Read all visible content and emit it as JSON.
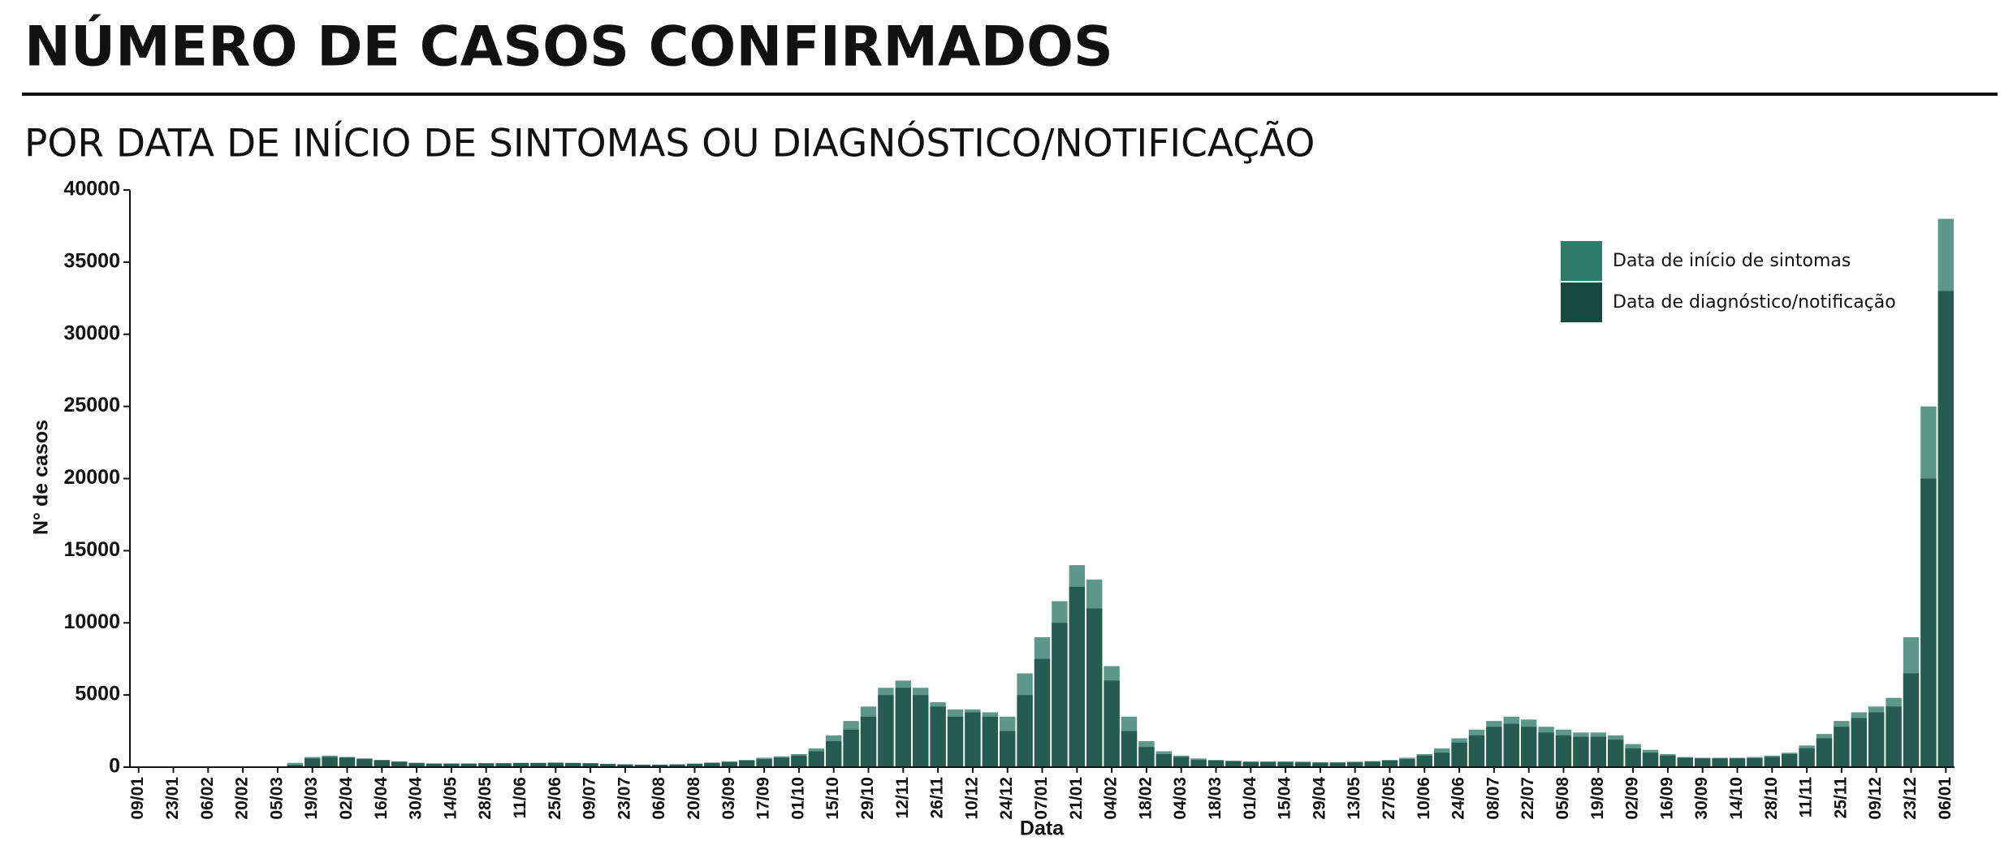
{
  "chart_data": {
    "type": "bar",
    "title": "NÚMERO DE CASOS CONFIRMADOS",
    "subtitle": "POR DATA DE INÍCIO DE SINTOMAS OU DIAGNÓSTICO/NOTIFICAÇÃO",
    "x_label": "Data",
    "y_label": "N° de casos",
    "categories": [
      "09/01",
      null,
      "23/01",
      null,
      "06/02",
      null,
      "20/02",
      null,
      "05/03",
      null,
      "19/03",
      null,
      "02/04",
      null,
      "16/04",
      null,
      "30/04",
      null,
      "14/05",
      null,
      "28/05",
      null,
      "11/06",
      null,
      "25/06",
      null,
      "09/07",
      null,
      "23/07",
      null,
      "06/08",
      null,
      "20/08",
      null,
      "03/09",
      null,
      "17/09",
      null,
      "01/10",
      null,
      "15/10",
      null,
      "29/10",
      null,
      "12/11",
      null,
      "26/11",
      null,
      "10/12",
      null,
      "24/12",
      null,
      "07/01",
      null,
      "21/01",
      null,
      "04/02",
      null,
      "18/02",
      null,
      "04/03",
      null,
      "18/03",
      null,
      "01/04",
      null,
      "15/04",
      null,
      "29/04",
      null,
      "13/05",
      null,
      "27/05",
      null,
      "10/06",
      null,
      "24/06",
      null,
      "08/07",
      null,
      "22/07",
      null,
      "05/08",
      null,
      "19/08",
      null,
      "02/09",
      null,
      "16/09",
      null,
      "30/09",
      null,
      "14/10",
      null,
      "28/10",
      null,
      "11/11",
      null,
      "25/11",
      null,
      "09/12",
      null,
      "23/12",
      null,
      "06/01"
    ],
    "series": [
      {
        "name": "Data de início de sintomas",
        "color": "#2f7a68",
        "values": [
          0,
          0,
          0,
          0,
          0,
          0,
          0,
          0,
          50,
          300,
          700,
          800,
          650,
          550,
          450,
          350,
          250,
          250,
          250,
          250,
          280,
          280,
          300,
          300,
          320,
          300,
          280,
          230,
          200,
          180,
          180,
          200,
          250,
          320,
          400,
          500,
          650,
          750,
          900,
          1300,
          2200,
          3200,
          4200,
          5500,
          6000,
          5500,
          4500,
          4000,
          4000,
          3800,
          3500,
          6500,
          9000,
          11500,
          14000,
          13000,
          7000,
          3500,
          1800,
          1100,
          800,
          600,
          500,
          450,
          400,
          400,
          400,
          380,
          350,
          350,
          380,
          420,
          500,
          650,
          900,
          1300,
          2000,
          2600,
          3200,
          3500,
          3300,
          2800,
          2600,
          2400,
          2400,
          2200,
          1600,
          1200,
          900,
          700,
          650,
          650,
          650,
          700,
          800,
          1000,
          1500,
          2300,
          3200,
          3800,
          4200,
          4800,
          9000,
          25000,
          38000
        ]
      },
      {
        "name": "Data de diagnóstico/notificação",
        "color": "#164a40",
        "values": [
          0,
          0,
          0,
          0,
          0,
          0,
          0,
          0,
          20,
          150,
          600,
          700,
          700,
          600,
          500,
          400,
          300,
          250,
          250,
          250,
          250,
          260,
          280,
          280,
          300,
          280,
          260,
          210,
          180,
          160,
          160,
          180,
          220,
          280,
          350,
          450,
          550,
          650,
          800,
          1100,
          1800,
          2600,
          3500,
          5000,
          5500,
          5000,
          4200,
          3500,
          3800,
          3500,
          2500,
          5000,
          7500,
          10000,
          12500,
          11000,
          6000,
          2500,
          1400,
          900,
          700,
          500,
          450,
          400,
          350,
          350,
          350,
          330,
          300,
          300,
          330,
          380,
          450,
          550,
          800,
          1000,
          1700,
          2200,
          2800,
          3000,
          2800,
          2400,
          2200,
          2100,
          2100,
          1900,
          1300,
          1000,
          800,
          650,
          600,
          600,
          600,
          620,
          700,
          900,
          1300,
          2000,
          2800,
          3400,
          3800,
          4200,
          6500,
          20000,
          33000
        ]
      }
    ],
    "ylim": [
      0,
      40000
    ],
    "yticks": [
      0,
      5000,
      10000,
      15000,
      20000,
      25000,
      30000,
      35000,
      40000
    ],
    "legend": "upper right"
  }
}
